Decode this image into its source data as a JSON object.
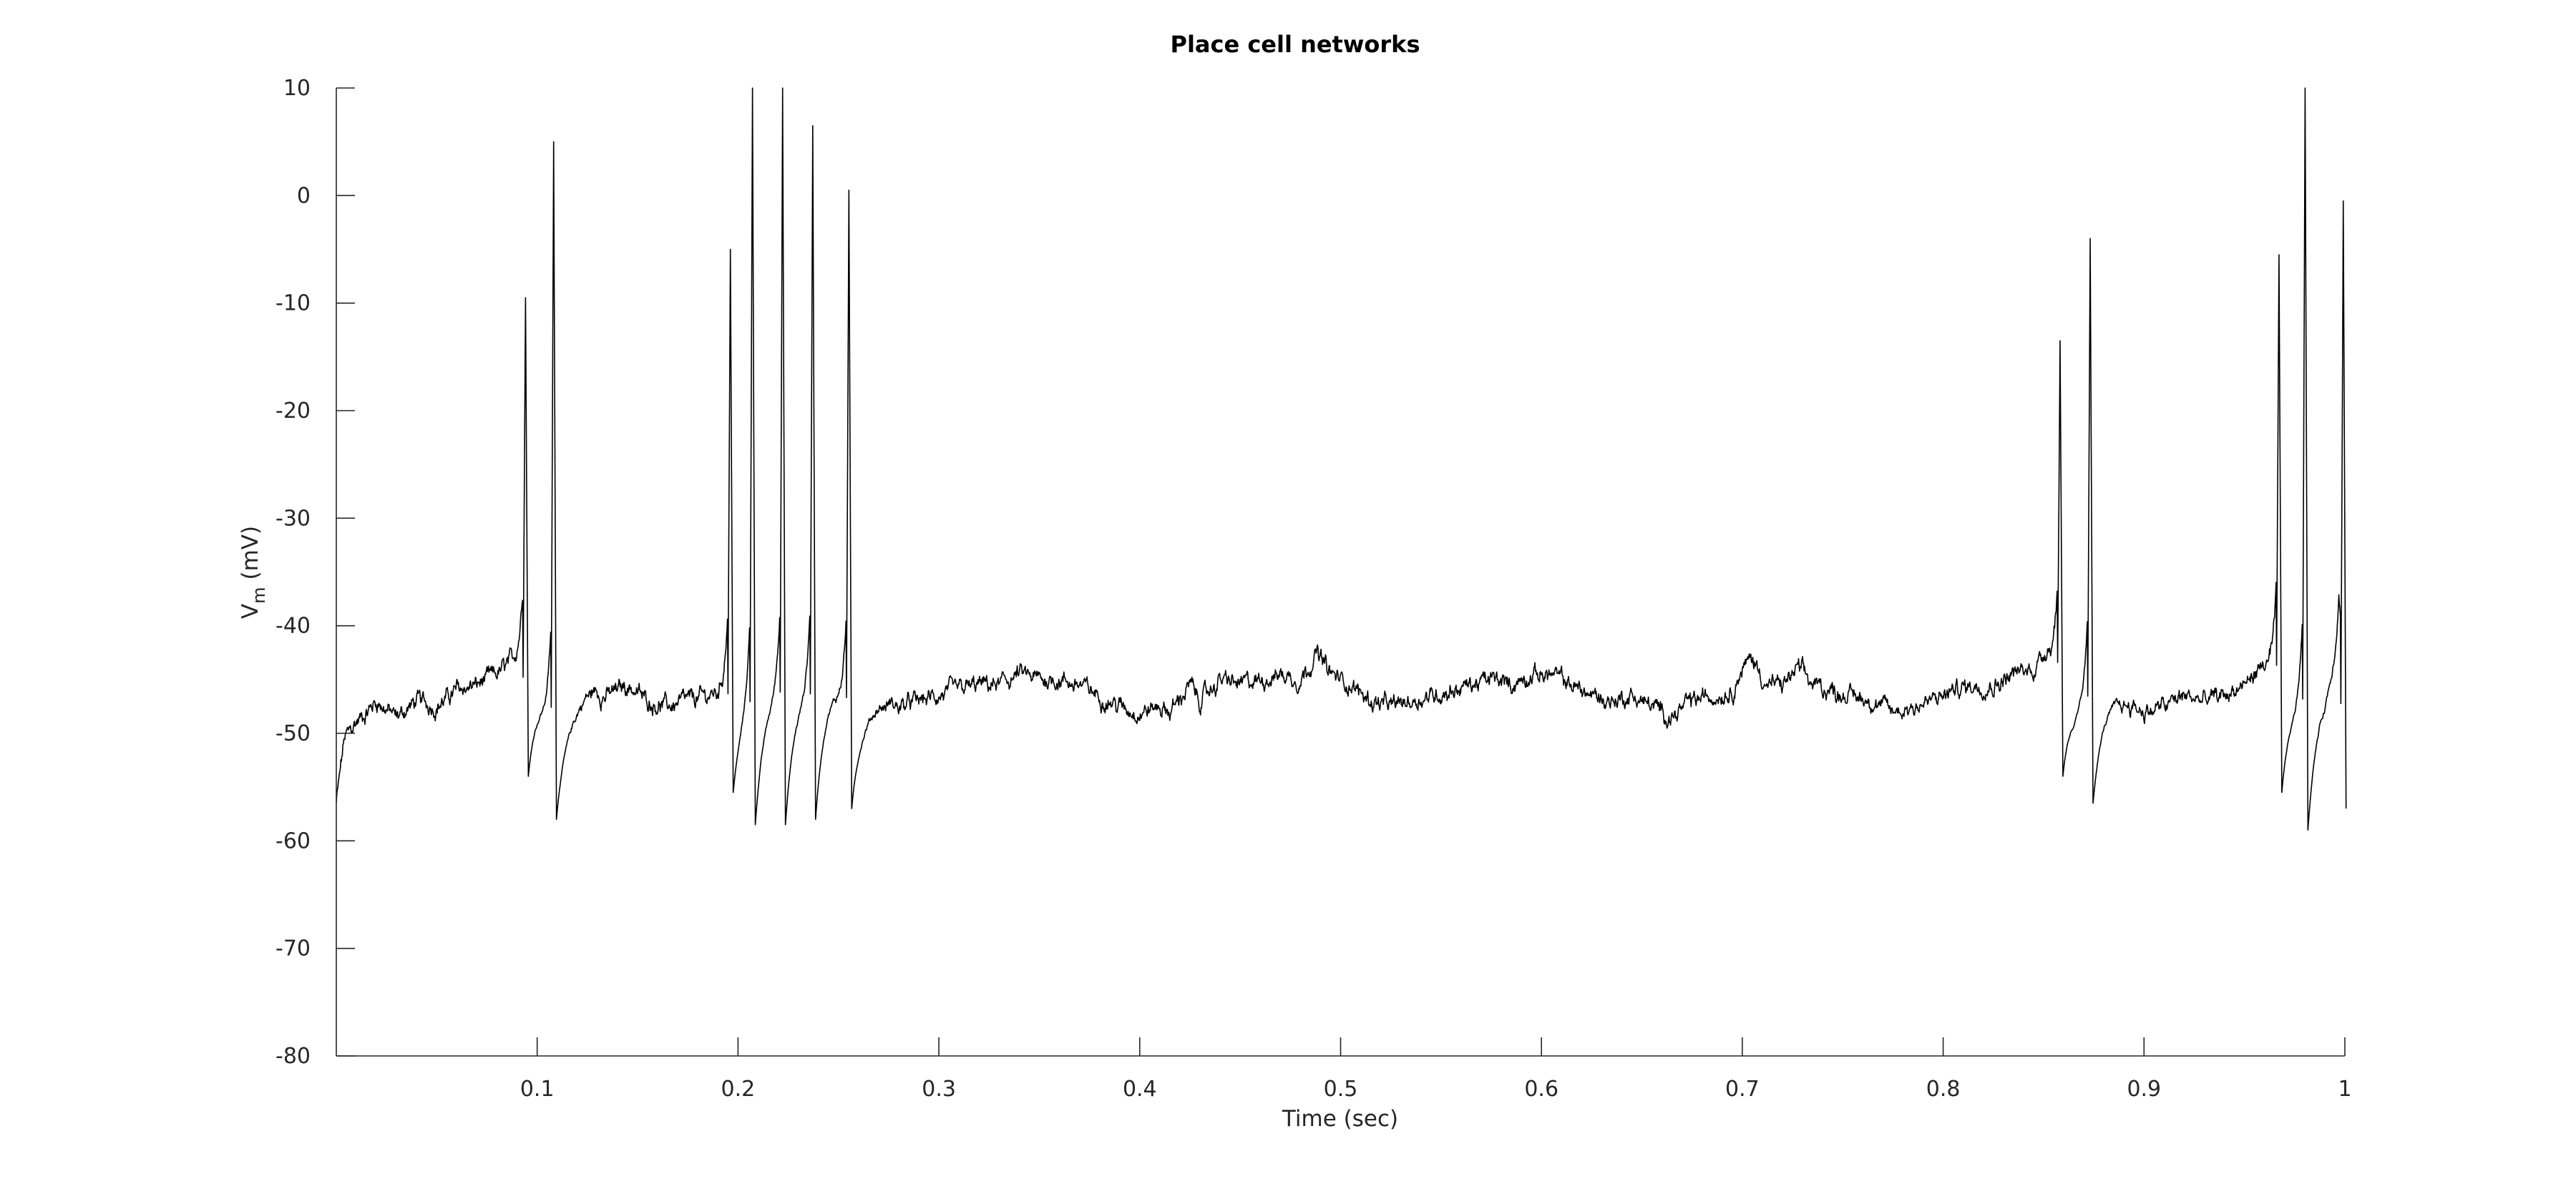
{
  "chart_data": {
    "type": "line",
    "title": "Place cell networks",
    "xlabel": "Time (sec)",
    "ylabel_main": "V",
    "ylabel_sub": "m",
    "ylabel_unit": "(mV)",
    "xlim": [
      0,
      1
    ],
    "ylim": [
      -80,
      10
    ],
    "xticks": [
      0.1,
      0.2,
      0.3,
      0.4,
      0.5,
      0.6,
      0.7,
      0.8,
      0.9,
      1
    ],
    "xtick_labels": [
      "0.1",
      "0.2",
      "0.3",
      "0.4",
      "0.5",
      "0.6",
      "0.7",
      "0.8",
      "0.9",
      "1"
    ],
    "yticks": [
      10,
      0,
      -10,
      -20,
      -30,
      -40,
      -50,
      -60,
      -70,
      -80
    ],
    "ytick_labels": [
      "10",
      "0",
      "-10",
      "-20",
      "-30",
      "-40",
      "-50",
      "-60",
      "-70",
      "-80"
    ],
    "grid": false,
    "line_color": "#000000",
    "baseline_points": [
      [
        0.0,
        -56.5
      ],
      [
        0.004,
        -50.5
      ],
      [
        0.01,
        -49.0
      ],
      [
        0.02,
        -47.0
      ],
      [
        0.03,
        -48.5
      ],
      [
        0.04,
        -47.0
      ],
      [
        0.05,
        -47.5
      ],
      [
        0.06,
        -46.0
      ],
      [
        0.07,
        -45.5
      ],
      [
        0.08,
        -44.5
      ],
      [
        0.09,
        -43.0
      ],
      [
        0.105,
        -47.0
      ],
      [
        0.115,
        -47.5
      ],
      [
        0.125,
        -46.0
      ],
      [
        0.135,
        -46.5
      ],
      [
        0.145,
        -45.5
      ],
      [
        0.155,
        -47.0
      ],
      [
        0.165,
        -47.5
      ],
      [
        0.175,
        -47.0
      ],
      [
        0.185,
        -46.5
      ],
      [
        0.195,
        -46.0
      ],
      [
        0.205,
        -45.5
      ],
      [
        0.215,
        -45.0
      ],
      [
        0.225,
        -45.0
      ],
      [
        0.235,
        -45.0
      ],
      [
        0.245,
        -44.5
      ],
      [
        0.26,
        -47.5
      ],
      [
        0.27,
        -47.0
      ],
      [
        0.28,
        -47.5
      ],
      [
        0.29,
        -47.0
      ],
      [
        0.3,
        -46.5
      ],
      [
        0.31,
        -46.0
      ],
      [
        0.32,
        -45.5
      ],
      [
        0.33,
        -45.5
      ],
      [
        0.34,
        -44.5
      ],
      [
        0.35,
        -45.0
      ],
      [
        0.36,
        -45.0
      ],
      [
        0.37,
        -45.5
      ],
      [
        0.38,
        -46.5
      ],
      [
        0.39,
        -47.5
      ],
      [
        0.4,
        -48.0
      ],
      [
        0.41,
        -47.5
      ],
      [
        0.415,
        -48.0
      ],
      [
        0.425,
        -45.5
      ],
      [
        0.43,
        -47.0
      ],
      [
        0.44,
        -45.0
      ],
      [
        0.45,
        -45.5
      ],
      [
        0.46,
        -45.0
      ],
      [
        0.47,
        -44.5
      ],
      [
        0.48,
        -45.0
      ],
      [
        0.488,
        -42.5
      ],
      [
        0.495,
        -44.5
      ],
      [
        0.505,
        -45.5
      ],
      [
        0.515,
        -47.0
      ],
      [
        0.525,
        -47.5
      ],
      [
        0.535,
        -47.0
      ],
      [
        0.545,
        -46.5
      ],
      [
        0.555,
        -46.0
      ],
      [
        0.565,
        -45.5
      ],
      [
        0.575,
        -45.0
      ],
      [
        0.585,
        -45.5
      ],
      [
        0.595,
        -44.5
      ],
      [
        0.605,
        -44.5
      ],
      [
        0.615,
        -45.5
      ],
      [
        0.625,
        -46.5
      ],
      [
        0.635,
        -47.0
      ],
      [
        0.645,
        -46.5
      ],
      [
        0.655,
        -47.5
      ],
      [
        0.665,
        -48.5
      ],
      [
        0.675,
        -47.0
      ],
      [
        0.685,
        -46.5
      ],
      [
        0.695,
        -46.0
      ],
      [
        0.7,
        -44.0
      ],
      [
        0.705,
        -43.0
      ],
      [
        0.712,
        -45.5
      ],
      [
        0.72,
        -45.5
      ],
      [
        0.728,
        -44.0
      ],
      [
        0.735,
        -45.5
      ],
      [
        0.745,
        -46.0
      ],
      [
        0.755,
        -46.5
      ],
      [
        0.765,
        -47.0
      ],
      [
        0.775,
        -48.0
      ],
      [
        0.785,
        -47.5
      ],
      [
        0.795,
        -47.0
      ],
      [
        0.805,
        -46.0
      ],
      [
        0.815,
        -45.5
      ],
      [
        0.825,
        -45.5
      ],
      [
        0.835,
        -44.5
      ],
      [
        0.845,
        -44.0
      ],
      [
        0.852,
        -42.0
      ],
      [
        0.865,
        -47.0
      ],
      [
        0.88,
        -46.0
      ],
      [
        0.89,
        -47.0
      ],
      [
        0.9,
        -48.0
      ],
      [
        0.91,
        -47.5
      ],
      [
        0.92,
        -46.5
      ],
      [
        0.93,
        -47.0
      ],
      [
        0.94,
        -46.5
      ],
      [
        0.95,
        -45.5
      ],
      [
        0.96,
        -43.5
      ],
      [
        0.975,
        -46.0
      ],
      [
        0.99,
        -45.0
      ],
      [
        0.997,
        -41.0
      ],
      [
        1.0,
        -57.0
      ]
    ],
    "spikes": [
      {
        "t": 0.093,
        "peak": -9.5,
        "trough": -54.0
      },
      {
        "t": 0.107,
        "peak": 5.0,
        "trough": -58.0
      },
      {
        "t": 0.195,
        "peak": -5.0,
        "trough": -55.5
      },
      {
        "t": 0.206,
        "peak": 10.0,
        "trough": -58.5
      },
      {
        "t": 0.221,
        "peak": 10.0,
        "trough": -58.5
      },
      {
        "t": 0.236,
        "peak": 6.5,
        "trough": -58.0
      },
      {
        "t": 0.254,
        "peak": 0.5,
        "trough": -57.0
      },
      {
        "t": 0.857,
        "peak": -13.5,
        "trough": -54.0
      },
      {
        "t": 0.872,
        "peak": -4.0,
        "trough": -56.5
      },
      {
        "t": 0.966,
        "peak": -5.5,
        "trough": -55.5
      },
      {
        "t": 0.979,
        "peak": 10.0,
        "trough": -59.0
      },
      {
        "t": 0.998,
        "peak": -0.5,
        "trough": -57.0
      }
    ]
  }
}
